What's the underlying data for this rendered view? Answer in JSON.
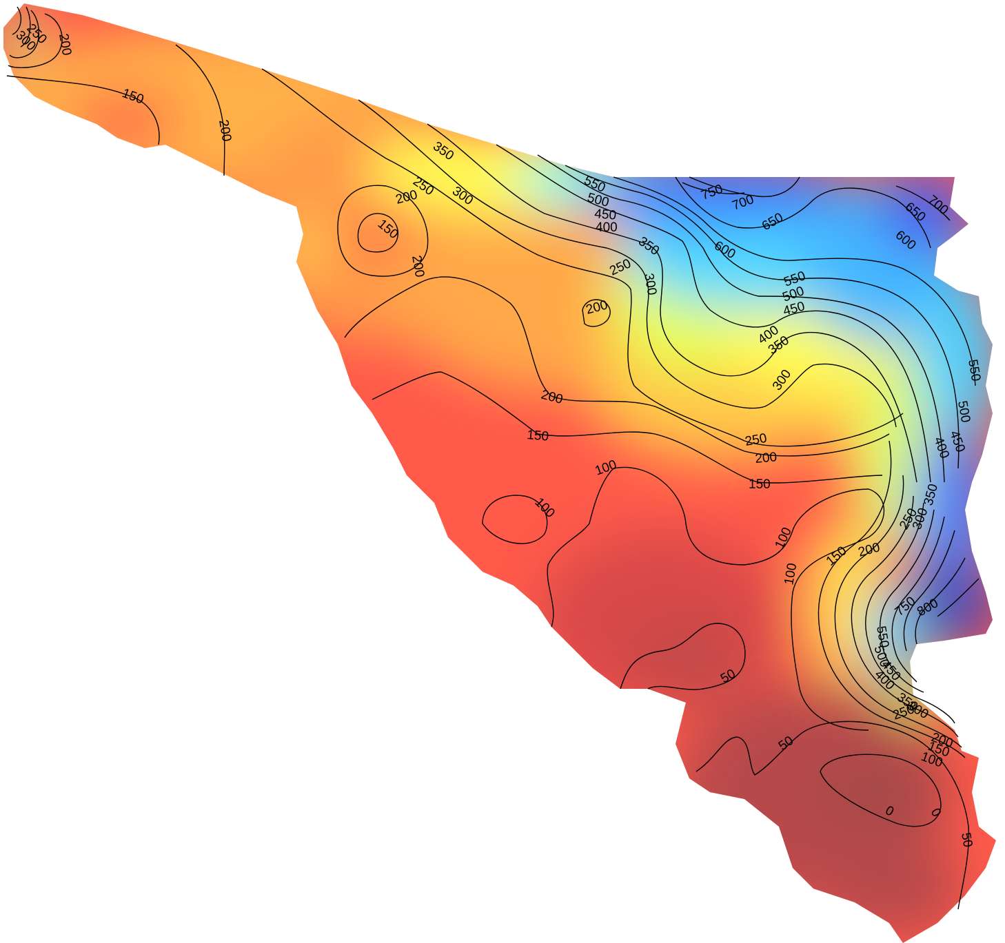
{
  "map": {
    "type": "filled-contour",
    "colormap": [
      "#b14a4b",
      "#ff4a4a",
      "#ff8a45",
      "#ffbf4a",
      "#ffff55",
      "#a8ff8a",
      "#44ffff",
      "#3f9fff",
      "#4040e8",
      "#4a4aa8"
    ],
    "contour_interval": 50,
    "labels": [
      {
        "text": "300"
      },
      {
        "text": "250"
      },
      {
        "text": "200"
      },
      {
        "text": "150"
      },
      {
        "text": "200"
      },
      {
        "text": "350"
      },
      {
        "text": "250"
      },
      {
        "text": "300"
      },
      {
        "text": "200"
      },
      {
        "text": "150"
      },
      {
        "text": "200"
      },
      {
        "text": "550"
      },
      {
        "text": "500"
      },
      {
        "text": "450"
      },
      {
        "text": "400"
      },
      {
        "text": "750"
      },
      {
        "text": "700"
      },
      {
        "text": "650"
      },
      {
        "text": "600"
      },
      {
        "text": "350"
      },
      {
        "text": "250"
      },
      {
        "text": "300"
      },
      {
        "text": "200"
      },
      {
        "text": "700"
      },
      {
        "text": "650"
      },
      {
        "text": "600"
      },
      {
        "text": "550"
      },
      {
        "text": "500"
      },
      {
        "text": "450"
      },
      {
        "text": "400"
      },
      {
        "text": "350"
      },
      {
        "text": "300"
      },
      {
        "text": "200"
      },
      {
        "text": "150"
      },
      {
        "text": "250"
      },
      {
        "text": "200"
      },
      {
        "text": "150"
      },
      {
        "text": "550"
      },
      {
        "text": "500"
      },
      {
        "text": "450"
      },
      {
        "text": "400"
      },
      {
        "text": "350"
      },
      {
        "text": "300"
      },
      {
        "text": "250"
      },
      {
        "text": "100"
      },
      {
        "text": "100"
      },
      {
        "text": "100"
      },
      {
        "text": "100"
      },
      {
        "text": "150"
      },
      {
        "text": "200"
      },
      {
        "text": "800"
      },
      {
        "text": "750"
      },
      {
        "text": "550"
      },
      {
        "text": "500"
      },
      {
        "text": "450"
      },
      {
        "text": "400"
      },
      {
        "text": "350"
      },
      {
        "text": "300"
      },
      {
        "text": "250"
      },
      {
        "text": "200"
      },
      {
        "text": "150"
      },
      {
        "text": "100"
      },
      {
        "text": "50"
      },
      {
        "text": "50"
      },
      {
        "text": "0"
      },
      {
        "text": "0"
      },
      {
        "text": "50"
      }
    ]
  }
}
